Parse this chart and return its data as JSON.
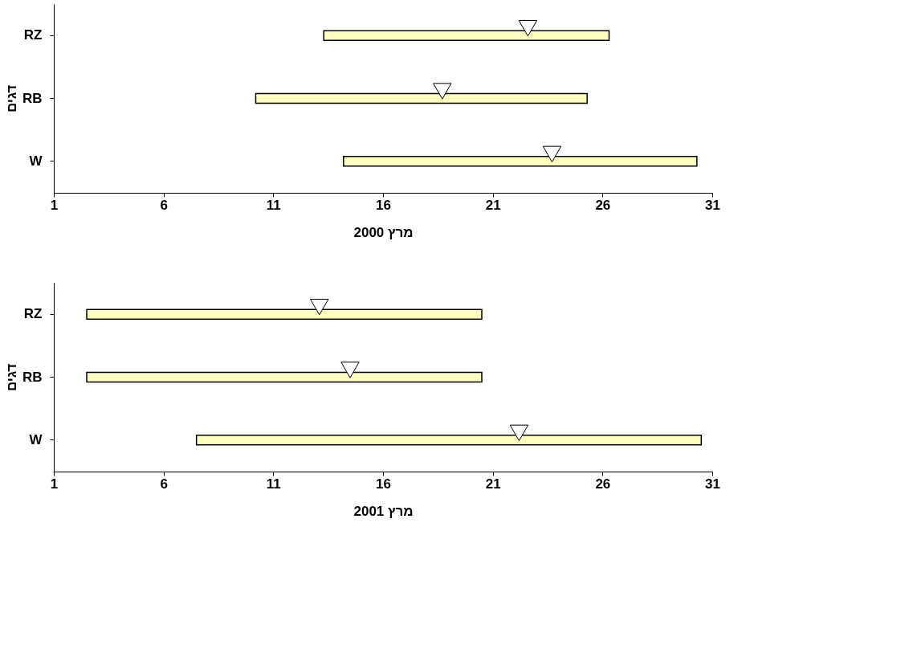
{
  "chart_data": [
    {
      "type": "bar",
      "orientation": "horizontal",
      "xlabel": "מרץ 2000",
      "ylabel": "דגים",
      "categories": [
        "RZ",
        "RB",
        "W"
      ],
      "xlim": [
        1,
        31
      ],
      "xticks": [
        1,
        6,
        11,
        16,
        21,
        26,
        31
      ],
      "grid": false,
      "legend": false,
      "series": [
        {
          "type": "bar",
          "color": "#ffffc0",
          "base": [
            13.3,
            10.2,
            14.2
          ],
          "values": [
            13.0,
            15.1,
            16.1
          ]
        },
        {
          "type": "scatter",
          "marker": "triangle",
          "color": "#ffffff",
          "x": [
            "RZ",
            "RB",
            "W"
          ],
          "values": [
            22.6,
            18.7,
            23.7
          ]
        }
      ]
    },
    {
      "type": "bar",
      "orientation": "horizontal",
      "xlabel": "מרץ 2001",
      "ylabel": "דגים",
      "categories": [
        "RZ",
        "RB",
        "W"
      ],
      "xlim": [
        1,
        31
      ],
      "xticks": [
        1,
        6,
        11,
        16,
        21,
        26,
        31
      ],
      "grid": false,
      "legend": false,
      "series": [
        {
          "type": "bar",
          "color": "#ffffc0",
          "base": [
            2.5,
            2.5,
            7.5
          ],
          "values": [
            18.0,
            18.0,
            23.0
          ]
        },
        {
          "type": "scatter",
          "marker": "triangle",
          "color": "#ffffff",
          "x": [
            "RZ",
            "RB",
            "W"
          ],
          "values": [
            13.1,
            14.5,
            22.2
          ]
        }
      ]
    }
  ]
}
